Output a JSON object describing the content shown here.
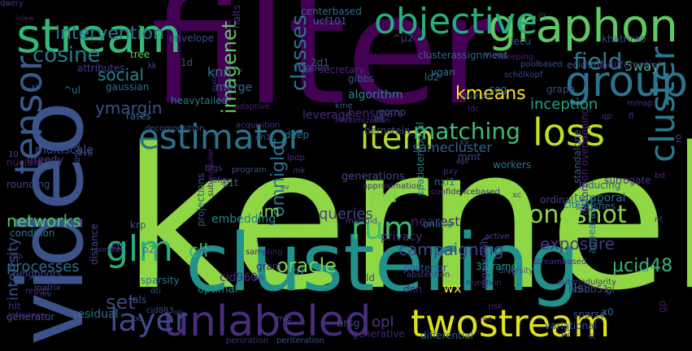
{
  "words": [
    {
      "text": "kernel",
      "color": "#8fd744"
    },
    {
      "text": "filter",
      "color": "#440154"
    },
    {
      "text": "clustering",
      "color": "#21918c"
    },
    {
      "text": "video",
      "color": "#3b528b"
    },
    {
      "text": "stream",
      "color": "#35b779"
    },
    {
      "text": "graphon",
      "color": "#5ec962"
    },
    {
      "text": "objective",
      "color": "#27ad81"
    },
    {
      "text": "group",
      "color": "#2c728e"
    },
    {
      "text": "twostream",
      "color": "#dde318"
    },
    {
      "text": "unlabeled",
      "color": "#472d7b"
    },
    {
      "text": "estimator",
      "color": "#2c728e"
    },
    {
      "text": "loss",
      "color": "#bddf26"
    },
    {
      "text": "item",
      "color": "#addc30"
    },
    {
      "text": "tensor",
      "color": "#38598c"
    },
    {
      "text": "glm",
      "color": "#28ae80"
    },
    {
      "text": "layer",
      "color": "#3e4989"
    },
    {
      "text": "cluster",
      "color": "#2a788e"
    },
    {
      "text": "field",
      "color": "#287d8e"
    },
    {
      "text": "matching",
      "color": "#3fbc73"
    },
    {
      "text": "rum",
      "color": "#3dbc74"
    },
    {
      "text": "oneshot",
      "color": "#8fd744"
    },
    {
      "text": "cosine",
      "color": "#2a788e"
    },
    {
      "text": "classes",
      "color": "#2b758e"
    },
    {
      "text": "imagenet",
      "color": "#5ec962"
    },
    {
      "text": "kmeans",
      "color": "#fde725"
    },
    {
      "text": "omniglot",
      "color": "#2c738e"
    },
    {
      "text": "oracle",
      "color": "#7ad151"
    },
    {
      "text": "exposure",
      "color": "#453781"
    },
    {
      "text": "campaigning",
      "color": "#3e4989"
    },
    {
      "text": "μcid48",
      "color": "#35b779"
    },
    {
      "text": "intensity",
      "color": "#3b528b"
    },
    {
      "text": "set",
      "color": "#3f4788"
    },
    {
      "text": "opl",
      "color": "#453781"
    },
    {
      "text": "social",
      "color": "#25848e"
    },
    {
      "text": "inception",
      "color": "#20a386"
    },
    {
      "text": "samecluster",
      "color": "#31688e"
    },
    {
      "text": "intervention",
      "color": "#2a788e"
    },
    {
      "text": "networks",
      "color": "#52c569"
    },
    {
      "text": "ymargin",
      "color": "#3b528b"
    },
    {
      "text": "5way",
      "color": "#3fbc73"
    },
    {
      "text": "cll",
      "color": "#35b779"
    },
    {
      "text": "um",
      "color": "#86d549"
    },
    {
      "text": "rnd",
      "color": "#7ad151"
    },
    {
      "text": "queries",
      "color": "#404688"
    },
    {
      "text": "nearest",
      "color": "#481a6c"
    },
    {
      "text": "privacy",
      "color": "#46337f"
    },
    {
      "text": "temporal",
      "color": "#2e6f8e"
    },
    {
      "text": "inducing",
      "color": "#3b528b"
    },
    {
      "text": "ordinal",
      "color": "#433e85"
    },
    {
      "text": "knn",
      "color": "#2a788e"
    },
    {
      "text": "merge",
      "color": "#2e6e8e"
    },
    {
      "text": "gibbs",
      "color": "#39568c"
    },
    {
      "text": "algorithm",
      "color": "#25848e"
    },
    {
      "text": "hensman",
      "color": "#482576"
    },
    {
      "text": "leverage",
      "color": "#472d7b"
    },
    {
      "text": "gomp",
      "color": "#3f4889"
    },
    {
      "text": "bernstein",
      "color": "#404688"
    },
    {
      "text": "processes",
      "color": "#2e6f8e"
    },
    {
      "text": "embedding",
      "color": "#25848e"
    },
    {
      "text": "sparsity",
      "color": "#2c738e"
    },
    {
      "text": "gram",
      "color": "#472a7a"
    },
    {
      "text": "generations",
      "color": "#3f4889"
    },
    {
      "text": "spatiotemporal",
      "color": "#2a788e"
    },
    {
      "text": "distortion overlapping",
      "color": "#482576"
    },
    {
      "text": "32frame",
      "color": "#1fa088"
    },
    {
      "text": "hlt",
      "color": "#482878"
    },
    {
      "text": "posterior",
      "color": "#3b528b"
    },
    {
      "text": "dnn",
      "color": "#481f70"
    },
    {
      "text": "lsi",
      "color": "#3b528b"
    },
    {
      "text": "wx",
      "color": "#fde725"
    },
    {
      "text": "sparse",
      "color": "#3e4989"
    },
    {
      "text": "variational",
      "color": "#3b528b"
    },
    {
      "text": "appearance",
      "color": "#2c728e"
    },
    {
      "text": "x0",
      "color": "#2e6e8e"
    },
    {
      "text": "gi",
      "color": "#3e4989"
    },
    {
      "text": "gp",
      "color": "#481a6c"
    },
    {
      "text": "residual",
      "color": "#2e6f8e"
    },
    {
      "text": "generator",
      "color": "#3b528b"
    },
    {
      "text": "generative",
      "color": "#482475"
    },
    {
      "text": "differential",
      "color": "#33638d"
    },
    {
      "text": "regression",
      "color": "#433e85"
    },
    {
      "text": "optimal",
      "color": "#25848e"
    },
    {
      "text": "cid960",
      "color": "#482878"
    },
    {
      "text": "als",
      "color": "#365c8d"
    },
    {
      "text": "brsg",
      "color": "#404688"
    },
    {
      "text": "ucf101",
      "color": "#34618d"
    },
    {
      "text": "centerbased",
      "color": "#31688e"
    },
    {
      "text": "lecu",
      "color": "#3b528b"
    },
    {
      "text": "clusterassignment",
      "color": "#33638d"
    },
    {
      "text": "sleeping",
      "color": "#482374"
    },
    {
      "text": "khatrirao",
      "color": "#3e4989"
    },
    {
      "text": "ecid96f",
      "color": "#3b528b"
    },
    {
      "text": "δdifferential",
      "color": "#46307e"
    },
    {
      "text": "envelope",
      "color": "#3f4889"
    },
    {
      "text": "halts",
      "color": "#472f7d"
    },
    {
      "text": "tree",
      "color": "#6ccd5a"
    },
    {
      "text": "attributes",
      "color": "#433e85"
    },
    {
      "text": "gaussian",
      "color": "#2f6b8e"
    },
    {
      "text": "heavytailed",
      "color": "#2a788e"
    },
    {
      "text": "rates",
      "color": "#31688e"
    },
    {
      "text": "decomposition",
      "color": "#3b528b"
    },
    {
      "text": "acquisition",
      "color": "#46337f"
    },
    {
      "text": "deep",
      "color": "#2c718e"
    },
    {
      "text": "multiscale",
      "color": "#3e4989"
    },
    {
      "text": "greedy",
      "color": "#404688"
    },
    {
      "text": "nuclear",
      "color": "#481b6d"
    },
    {
      "text": "losses",
      "color": "#3b528b"
    },
    {
      "text": "bfgs",
      "color": "#433e85"
    },
    {
      "text": "l0fgs",
      "color": "#46337f"
    },
    {
      "text": "submodular",
      "color": "#482173"
    },
    {
      "text": "rounding",
      "color": "#3e4989"
    },
    {
      "text": "condition",
      "color": "#2a788e"
    },
    {
      "text": "neighbors",
      "color": "#3e4989"
    },
    {
      "text": "krp",
      "color": "#3b528b"
    },
    {
      "text": "cp",
      "color": "#3f4788"
    },
    {
      "text": "p2",
      "color": "#2e6f8e"
    },
    {
      "text": "distance",
      "color": "#404688"
    },
    {
      "text": "projections",
      "color": "#3b528b"
    },
    {
      "text": "11t",
      "color": "#2e6f8e"
    },
    {
      "text": "nxi1",
      "color": "#31688e"
    },
    {
      "text": "hmdb51",
      "color": "#433e85"
    },
    {
      "text": "cid96f",
      "color": "#2e6f8e"
    },
    {
      "text": "satisfies",
      "color": "#33638d"
    },
    {
      "text": "standalone",
      "color": "#3b528b"
    },
    {
      "text": "workers",
      "color": "#2c728e"
    },
    {
      "text": "mmt",
      "color": "#404688"
    },
    {
      "text": "surrogate",
      "color": "#46337f"
    },
    {
      "text": "online",
      "color": "#2c728e"
    },
    {
      "text": "active",
      "color": "#3f4788"
    },
    {
      "text": "abstention",
      "color": "#433e85"
    },
    {
      "text": "streambased",
      "color": "#46307e"
    },
    {
      "text": "rg",
      "color": "#2e6f8e"
    },
    {
      "text": "ld",
      "color": "#3e4989"
    },
    {
      "text": "ld1",
      "color": "#2c728e"
    },
    {
      "text": "ld2",
      "color": "#31688e"
    },
    {
      "text": "1d",
      "color": "#3b528b"
    },
    {
      "text": "2d1",
      "color": "#3b528b"
    },
    {
      "text": "sog",
      "color": "#2e6f8e"
    },
    {
      "text": "vgan",
      "color": "#2e6f8e"
    },
    {
      "text": "graph",
      "color": "#3e4989"
    },
    {
      "text": "motion",
      "color": "#3f4788"
    },
    {
      "text": "secretary",
      "color": "#482878"
    },
    {
      "text": "sampling",
      "color": "#482374"
    },
    {
      "text": "regret",
      "color": "#46307e"
    },
    {
      "text": "matrix",
      "color": "#433e85"
    },
    {
      "text": "inference",
      "color": "#482475"
    },
    {
      "text": "cid883",
      "color": "#3e4989"
    },
    {
      "text": "peroration",
      "color": "#46307e"
    },
    {
      "text": "periteration",
      "color": "#3b528b"
    },
    {
      "text": "agd",
      "color": "#404688"
    },
    {
      "text": "risk",
      "color": "#482173"
    },
    {
      "text": "diversity",
      "color": "#3e4989"
    },
    {
      "text": "submodularity",
      "color": "#46307e"
    },
    {
      "text": "xc",
      "color": "#433e85"
    },
    {
      "text": "r0",
      "color": "#3e4989"
    },
    {
      "text": "μ2",
      "color": "#404688"
    },
    {
      "text": "bo",
      "color": "#3b528b"
    },
    {
      "text": "ols",
      "color": "#404688"
    },
    {
      "text": "pp",
      "color": "#3e4989"
    },
    {
      "text": "mle",
      "color": "#404688"
    },
    {
      "text": "kme",
      "color": "#3b528b"
    },
    {
      "text": "mmap",
      "color": "#46307e"
    },
    {
      "text": "stumps",
      "color": "#3e4989"
    },
    {
      "text": "schölkopf",
      "color": "#3e4989"
    },
    {
      "text": "poolbased",
      "color": "#3b528b"
    },
    {
      "text": "views",
      "color": "#404688"
    },
    {
      "text": "lht",
      "color": "#3b528b"
    },
    {
      "text": "maximization",
      "color": "#46307e"
    },
    {
      "text": "program",
      "color": "#3b528b"
    },
    {
      "text": "adaptive",
      "color": "#482173"
    },
    {
      "text": "matérn",
      "color": "#46307e"
    },
    {
      "text": "dh1",
      "color": "#3e4989"
    },
    {
      "text": "xir",
      "color": "#3e4989"
    },
    {
      "text": "3view",
      "color": "#482173"
    },
    {
      "text": "py",
      "color": "#46307e"
    },
    {
      "text": "fv0",
      "color": "#3e4989"
    },
    {
      "text": "10",
      "color": "#3b528b"
    },
    {
      "text": "λk",
      "color": "#3e4989"
    },
    {
      "text": "μx",
      "color": "#3b528b"
    },
    {
      "text": "^w",
      "color": "#3e4989"
    },
    {
      "text": "^ul",
      "color": "#2c728e"
    },
    {
      "text": "^μ2",
      "color": "#404688"
    },
    {
      "text": "dti",
      "color": "#3e4989"
    },
    {
      "text": "confidencebased",
      "color": "#482475"
    },
    {
      "text": "approximation",
      "color": "#46307e"
    },
    {
      "text": "matroid",
      "color": "#404688"
    },
    {
      "text": "rejection",
      "color": "#482374"
    },
    {
      "text": "sampler",
      "color": "#46307e"
    },
    {
      "text": "lmb",
      "color": "#46307e"
    },
    {
      "text": "mv",
      "color": "#3e4989"
    },
    {
      "text": "rp",
      "color": "#46307e"
    },
    {
      "text": "av",
      "color": "#404688"
    },
    {
      "text": "mk",
      "color": "#46307e"
    },
    {
      "text": "lpdp",
      "color": "#46307e"
    },
    {
      "text": "pxy",
      "color": "#46307e"
    },
    {
      "text": "xy",
      "color": "#3e4989"
    },
    {
      "text": "ldc",
      "color": "#482173"
    },
    {
      "text": "bd",
      "color": "#46307e"
    },
    {
      "text": "nt",
      "color": "#46307e"
    },
    {
      "text": "qp",
      "color": "#46307e"
    },
    {
      "text": "fl",
      "color": "#46307e"
    },
    {
      "text": "ms",
      "color": "#46307e"
    },
    {
      "text": "ct",
      "color": "#46307e"
    },
    {
      "text": "ds",
      "color": "#46307e"
    },
    {
      "text": "query",
      "color": "#46307e"
    }
  ]
}
